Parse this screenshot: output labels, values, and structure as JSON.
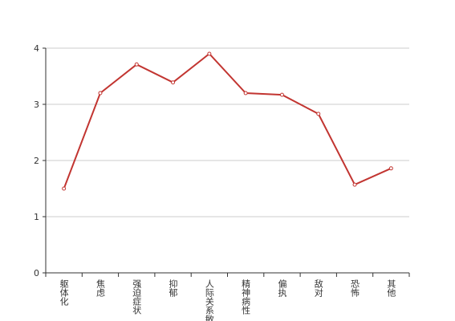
{
  "chart_data": {
    "type": "line",
    "categories": [
      "躯体化",
      "焦虑",
      "强迫症状",
      "抑郁",
      "人际关系敏感",
      "精神病性",
      "偏执",
      "敌对",
      "恐怖",
      "其他"
    ],
    "values": [
      1.5,
      3.2,
      3.71,
      3.39,
      3.9,
      3.2,
      3.17,
      2.83,
      1.57,
      1.86
    ],
    "color": "#c23531",
    "ylim": [
      0,
      4
    ],
    "yticks": [
      0,
      1,
      2,
      3,
      4
    ],
    "grid": true
  }
}
